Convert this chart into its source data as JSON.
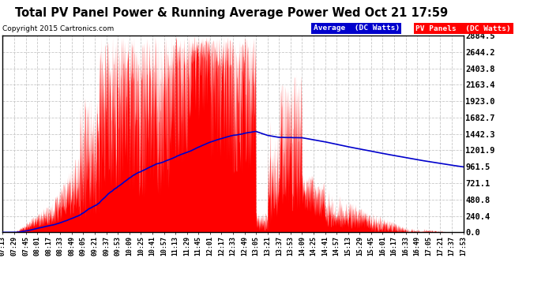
{
  "title": "Total PV Panel Power & Running Average Power Wed Oct 21 17:59",
  "copyright": "Copyright 2015 Cartronics.com",
  "ylabel_values": [
    0.0,
    240.4,
    480.8,
    721.1,
    961.5,
    1201.9,
    1442.3,
    1682.7,
    1923.0,
    2163.4,
    2403.8,
    2644.2,
    2884.5
  ],
  "ymax": 2884.5,
  "ymin": 0.0,
  "bg_color": "#ffffff",
  "plot_bg_color": "#ffffff",
  "grid_color": "#c8c8c8",
  "pv_color": "#ff0000",
  "avg_color": "#0000cc",
  "legend_avg_bg": "#0000cc",
  "legend_pv_bg": "#ff0000",
  "legend_avg_text": "Average  (DC Watts)",
  "legend_pv_text": "PV Panels  (DC Watts)",
  "border_color": "#000000",
  "xtick_labels": [
    "07:13",
    "07:29",
    "07:45",
    "08:01",
    "08:17",
    "08:33",
    "08:49",
    "09:05",
    "09:21",
    "09:37",
    "09:53",
    "10:09",
    "10:25",
    "10:41",
    "10:57",
    "11:13",
    "11:29",
    "11:45",
    "12:01",
    "12:17",
    "12:33",
    "12:49",
    "13:05",
    "13:21",
    "13:37",
    "13:53",
    "14:09",
    "14:25",
    "14:41",
    "14:57",
    "15:13",
    "15:29",
    "15:45",
    "16:01",
    "16:17",
    "16:33",
    "16:49",
    "17:05",
    "17:21",
    "17:37",
    "17:53"
  ]
}
